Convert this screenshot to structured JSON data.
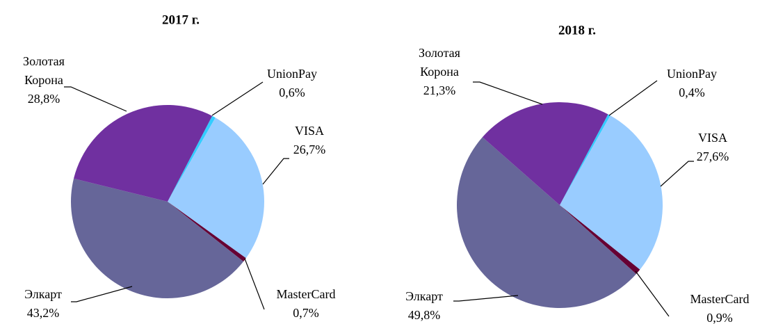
{
  "chart_data": [
    {
      "type": "pie",
      "title": "2017 г.",
      "categories": [
        "UnionPay",
        "VISA",
        "MasterCard",
        "Элкарт",
        "Золотая Корона"
      ],
      "values": [
        0.6,
        26.7,
        0.7,
        43.2,
        28.8
      ],
      "value_labels": [
        "0,6%",
        "26,7%",
        "0,7%",
        "43,2%",
        "28,8%"
      ],
      "colors": [
        "#33ccff",
        "#99ccff",
        "#660033",
        "#666699",
        "#7030a0"
      ]
    },
    {
      "type": "pie",
      "title": "2018 г.",
      "categories": [
        "UnionPay",
        "VISA",
        "MasterCard",
        "Элкарт",
        "Золотая Корона"
      ],
      "values": [
        0.4,
        27.6,
        0.9,
        49.8,
        21.3
      ],
      "value_labels": [
        "0,4%",
        "27,6%",
        "0,9%",
        "49,8%",
        "21,3%"
      ],
      "colors": [
        "#33ccff",
        "#99ccff",
        "#660033",
        "#666699",
        "#7030a0"
      ]
    }
  ]
}
